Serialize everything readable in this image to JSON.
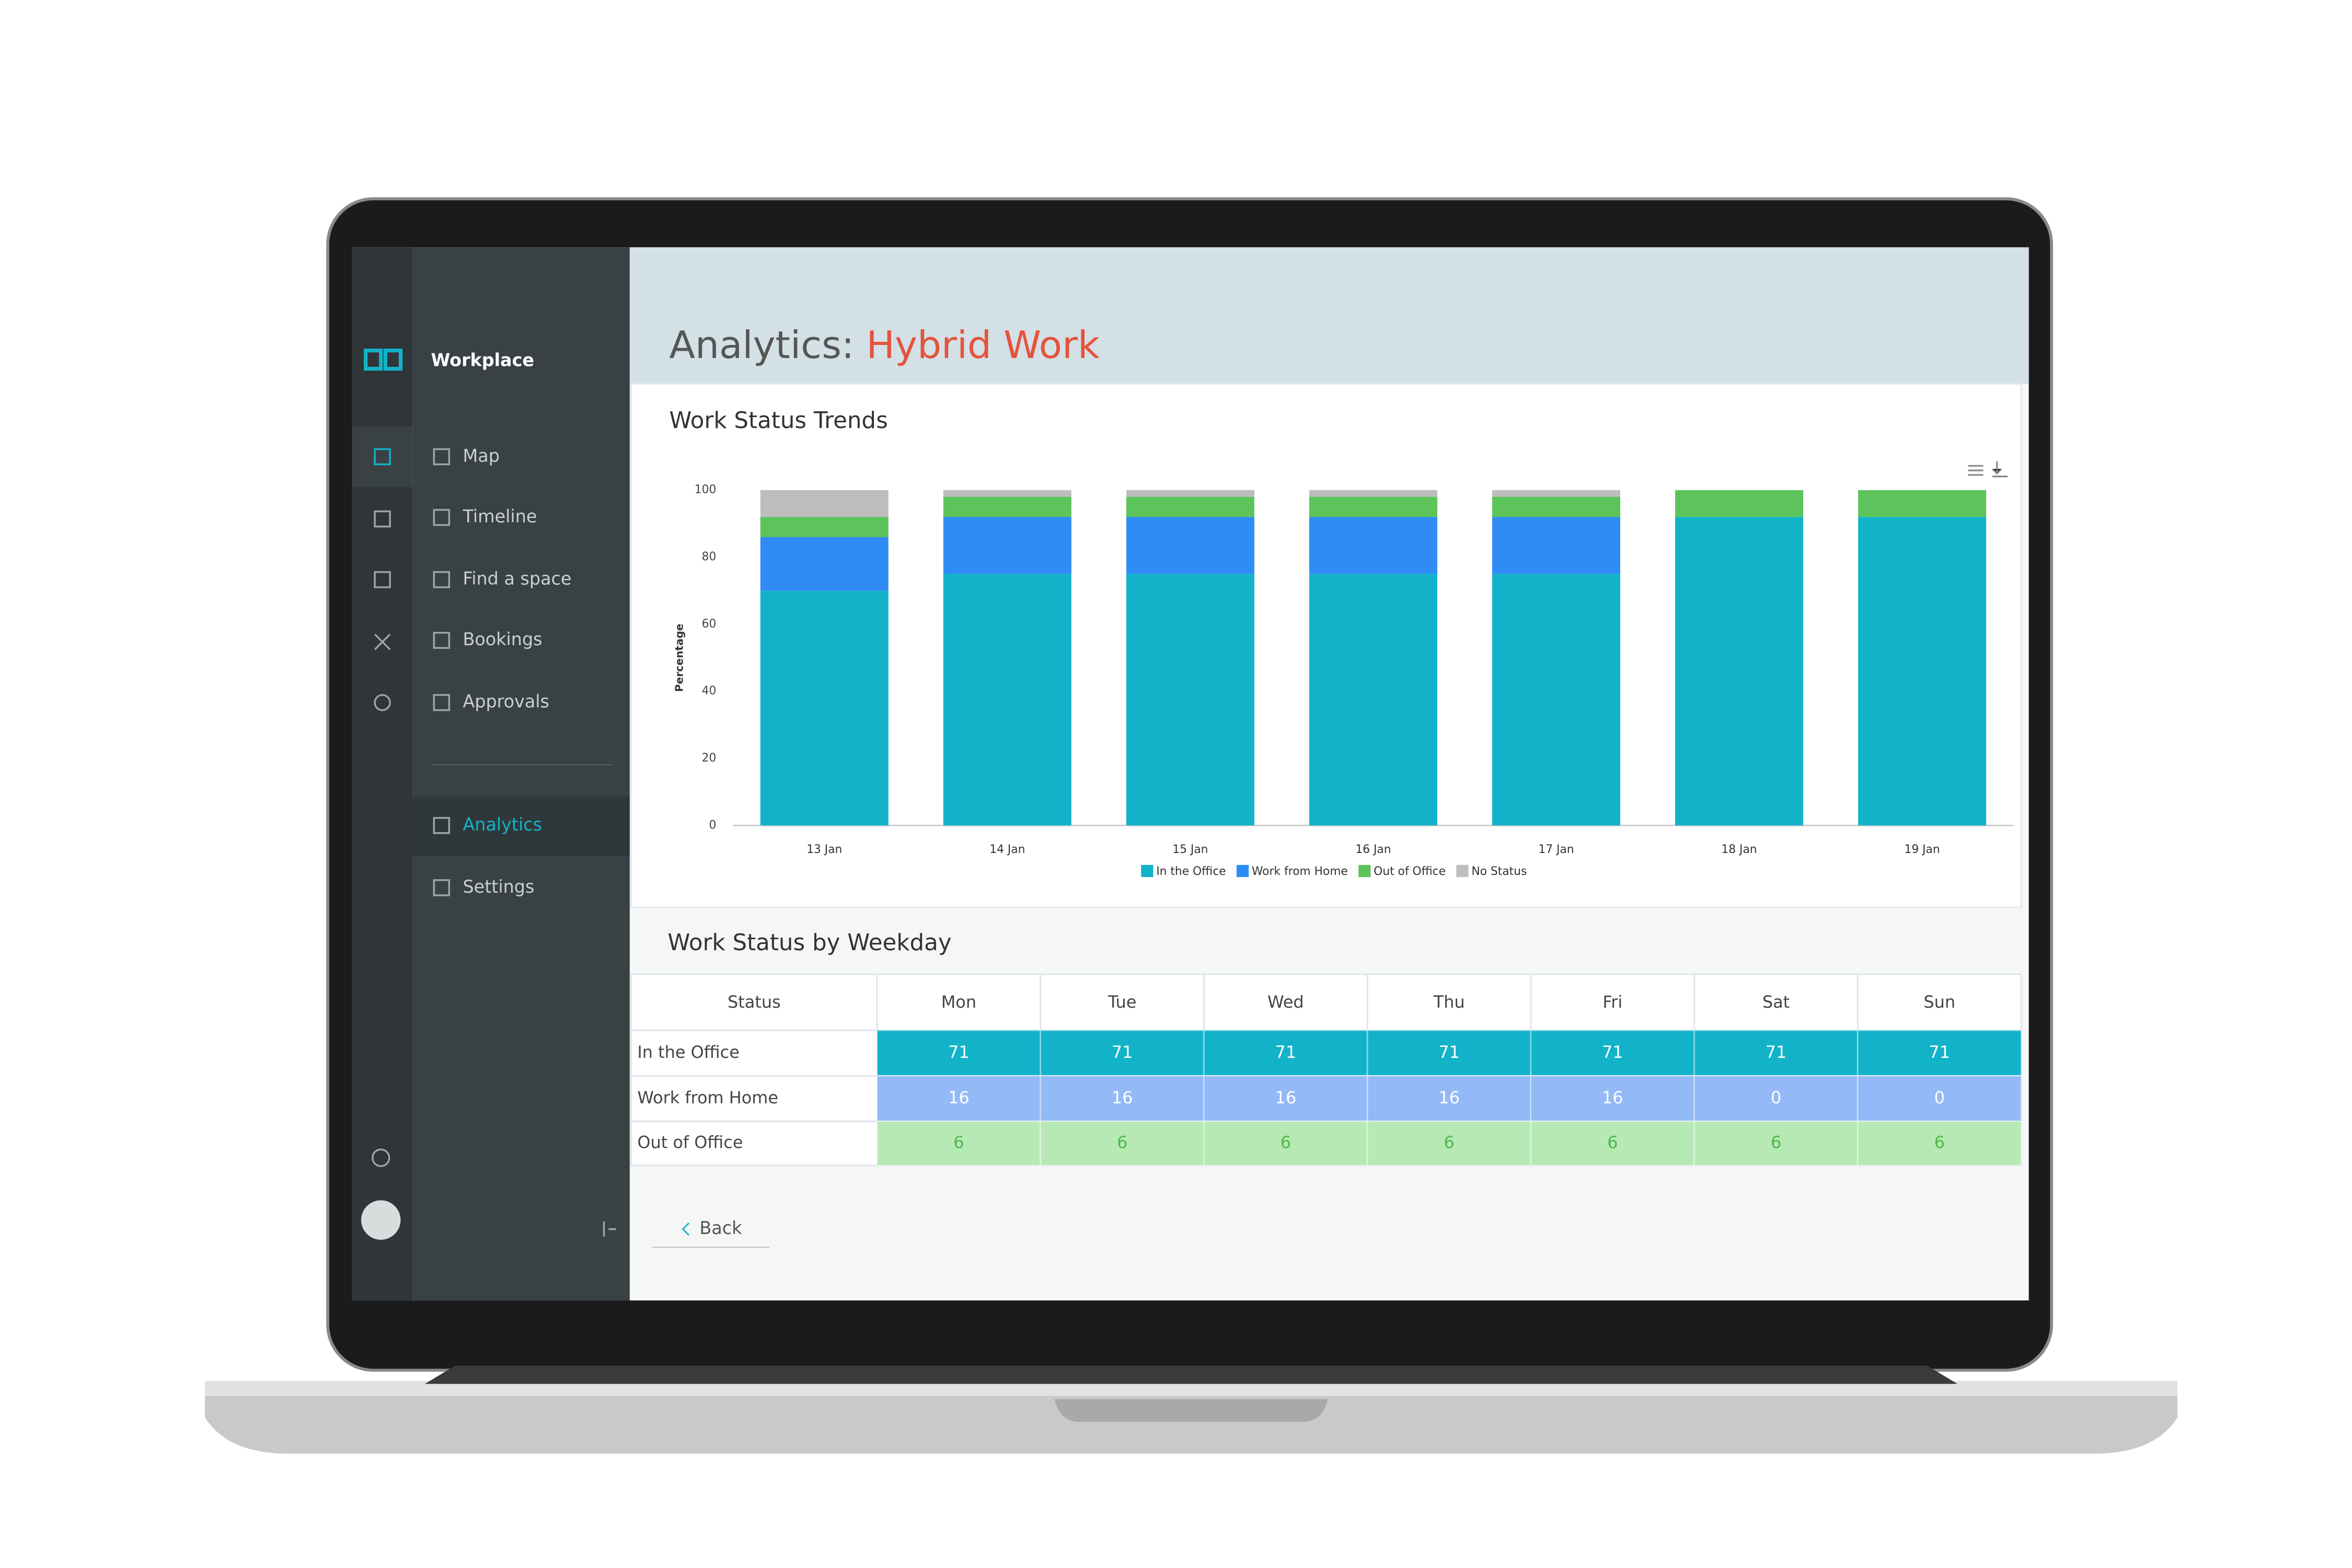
{
  "sidebar": {
    "brand": "Workplace",
    "items": [
      "Map",
      "Timeline",
      "Find a space",
      "Bookings",
      "Approvals",
      "Analytics",
      "Settings"
    ]
  },
  "header": {
    "title": "Analytics:",
    "subtitle": "Hybrid Work"
  },
  "chart_data": {
    "type": "stacked-bar",
    "title": "Work Status Trends",
    "y_label": "Percentage",
    "categories": [
      "13 Jan",
      "14 Jan",
      "15 Jan",
      "16 Jan",
      "17 Jan",
      "18 Jan",
      "19 Jan"
    ],
    "series": [
      {
        "name": "In the Office",
        "color": "#12b3c9",
        "values": [
          70,
          75,
          75,
          75,
          75,
          92,
          92
        ]
      },
      {
        "name": "Work from Home",
        "color": "#2f8cf5",
        "values": [
          16,
          17,
          17,
          17,
          17,
          0,
          0
        ]
      },
      {
        "name": "Out of Office",
        "color": "#5cc45a",
        "values": [
          6,
          6,
          6,
          6,
          6,
          8,
          8
        ]
      },
      {
        "name": "No Status",
        "color": "#bdbdbd",
        "values": [
          8,
          2,
          2,
          2,
          2,
          0,
          0
        ]
      }
    ],
    "ylim": [
      0,
      100
    ],
    "yticks": [
      0,
      20,
      40,
      60,
      80,
      100
    ],
    "grid": false,
    "legend": "bottom"
  },
  "table": {
    "title": "Work Status by Weekday",
    "columns": [
      "Status",
      "Mon",
      "Tue",
      "Wed",
      "Thu",
      "Fri",
      "Sat",
      "Sun"
    ],
    "rows": [
      [
        "In the Office",
        71,
        71,
        71,
        71,
        71,
        71,
        71
      ],
      [
        "Work from Home",
        16,
        16,
        16,
        16,
        16,
        0,
        0
      ],
      [
        "Out of Office",
        6,
        6,
        6,
        6,
        6,
        6,
        6
      ]
    ]
  },
  "back": "Back"
}
